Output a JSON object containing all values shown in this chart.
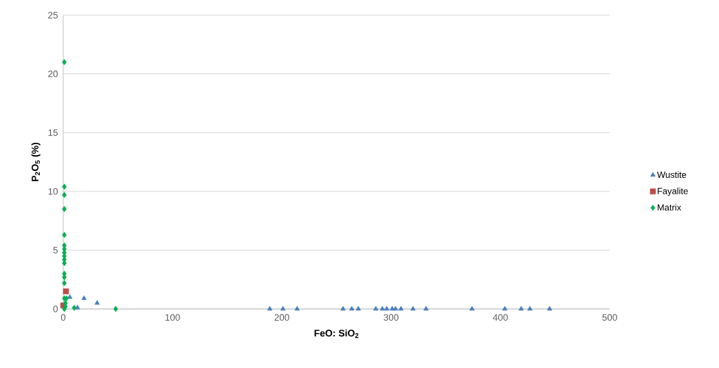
{
  "chart_data": {
    "type": "scatter",
    "xlabel": "FeO: SiO$_{2}$",
    "ylabel": "P$_{2}$O$_{5}$ (%)",
    "xlim": [
      0,
      500
    ],
    "xticks": [
      0,
      100,
      200,
      300,
      400,
      500
    ],
    "ylim": [
      0,
      25
    ],
    "yticks": [
      0,
      5,
      10,
      15,
      20,
      25
    ],
    "grid": "y",
    "legend": "right",
    "series": [
      {
        "name": "Wustite",
        "color": "#4a7ebb",
        "marker": "triangle",
        "x": [
          6,
          13,
          19,
          31,
          189,
          201,
          214,
          256,
          264,
          270,
          286,
          292,
          296,
          301,
          304,
          309,
          320,
          332,
          374,
          404,
          419,
          427,
          445
        ],
        "values": [
          1.0,
          0.1,
          0.9,
          0.5,
          0,
          0,
          0,
          0,
          0,
          0,
          0,
          0,
          0,
          0,
          0,
          0,
          0,
          0,
          0,
          0,
          0,
          0,
          0
        ]
      },
      {
        "name": "Fayalite",
        "color": "#be4b48",
        "marker": "square",
        "x": [
          0,
          2.5
        ],
        "values": [
          0.3,
          1.5
        ]
      },
      {
        "name": "Matrix",
        "color": "#00b050",
        "marker": "diamond",
        "x": [
          1,
          1,
          1,
          1,
          1,
          1,
          1,
          1,
          1,
          1,
          1,
          1,
          1,
          1,
          1,
          2,
          3,
          2,
          1,
          10,
          48
        ],
        "values": [
          21,
          10.4,
          9.7,
          8.5,
          6.3,
          5.4,
          5.1,
          4.8,
          4.5,
          4.2,
          3.9,
          3.0,
          2.7,
          2.2,
          0.9,
          0.5,
          0.9,
          0.2,
          0.0,
          0.1,
          0
        ]
      }
    ]
  }
}
